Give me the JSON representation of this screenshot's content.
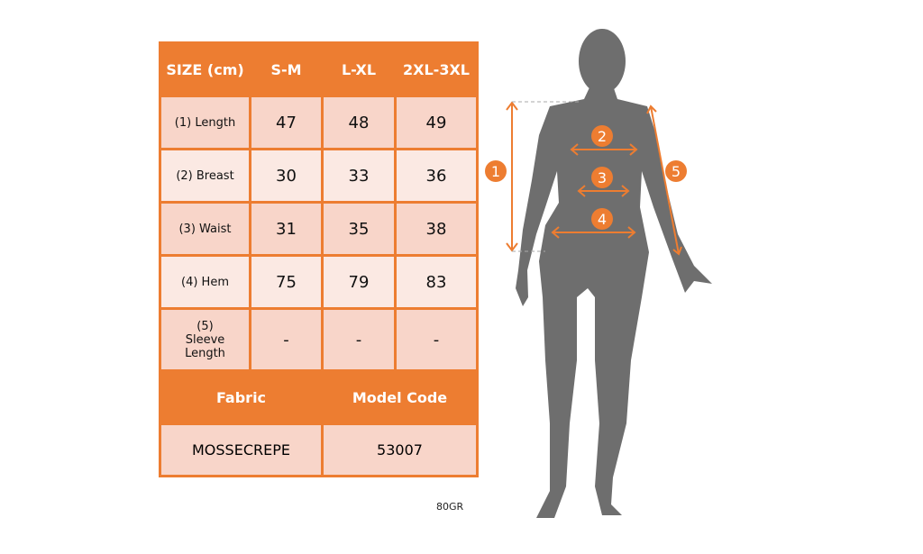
{
  "table": {
    "header": [
      "SIZE (cm)",
      "S-M",
      "L-XL",
      "2XL-3XL"
    ],
    "rows": [
      {
        "label": "(1) Length",
        "values": [
          "47",
          "48",
          "49"
        ]
      },
      {
        "label": "(2) Breast",
        "values": [
          "30",
          "33",
          "36"
        ]
      },
      {
        "label": "(3) Waist",
        "values": [
          "31",
          "35",
          "38"
        ]
      },
      {
        "label": "(4) Hem",
        "values": [
          "75",
          "79",
          "83"
        ]
      },
      {
        "label": "(5) Sleeve Length",
        "values": [
          "-",
          "-",
          "-"
        ]
      }
    ],
    "fabric_label": "Fabric",
    "model_code_label": "Model Code",
    "fabric": "MOSSECREPE",
    "model_code": "53007"
  },
  "weight": "80GR",
  "markers": [
    "1",
    "2",
    "3",
    "4",
    "5"
  ],
  "colors": {
    "accent": "#ed7d31",
    "row_dark": "#f8d5c9",
    "row_light": "#fbe9e3",
    "silhouette": "#6e6e6e"
  }
}
